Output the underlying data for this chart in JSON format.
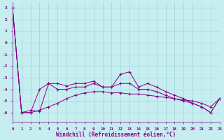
{
  "xlabel": "Windchill (Refroidissement éolien,°C)",
  "background_color": "#c6eef0",
  "grid_color": "#a8d8da",
  "line_color": "#880088",
  "x": [
    0,
    1,
    2,
    3,
    4,
    5,
    6,
    7,
    8,
    9,
    10,
    11,
    12,
    13,
    14,
    15,
    16,
    17,
    18,
    19,
    20,
    21,
    22,
    23
  ],
  "line1": [
    3.0,
    -6.0,
    -5.8,
    -5.9,
    -3.5,
    -3.5,
    -3.7,
    -3.5,
    -3.5,
    -3.3,
    -3.8,
    -3.8,
    -2.7,
    -2.5,
    -3.8,
    -3.5,
    -3.8,
    -4.2,
    -4.5,
    -4.8,
    -5.2,
    -5.5,
    -6.0,
    -4.8
  ],
  "line2": [
    3.0,
    -6.0,
    -6.0,
    -4.0,
    -3.5,
    -4.0,
    -4.0,
    -3.8,
    -3.8,
    -3.5,
    -3.8,
    -3.8,
    -3.5,
    -3.5,
    -4.0,
    -4.0,
    -4.2,
    -4.5,
    -4.8,
    -5.0,
    -5.2,
    -5.5,
    -6.0,
    -4.8
  ],
  "line3": [
    3.0,
    -6.0,
    -6.0,
    -5.8,
    -5.5,
    -5.2,
    -4.8,
    -4.5,
    -4.3,
    -4.2,
    -4.2,
    -4.3,
    -4.3,
    -4.4,
    -4.4,
    -4.5,
    -4.6,
    -4.7,
    -4.8,
    -4.9,
    -5.0,
    -5.2,
    -5.5,
    -4.8
  ],
  "ylim": [
    -6.8,
    3.5
  ],
  "yticks": [
    -6,
    -5,
    -4,
    -3,
    -2,
    -1,
    0,
    1,
    2,
    3
  ],
  "xlim": [
    0,
    23
  ]
}
